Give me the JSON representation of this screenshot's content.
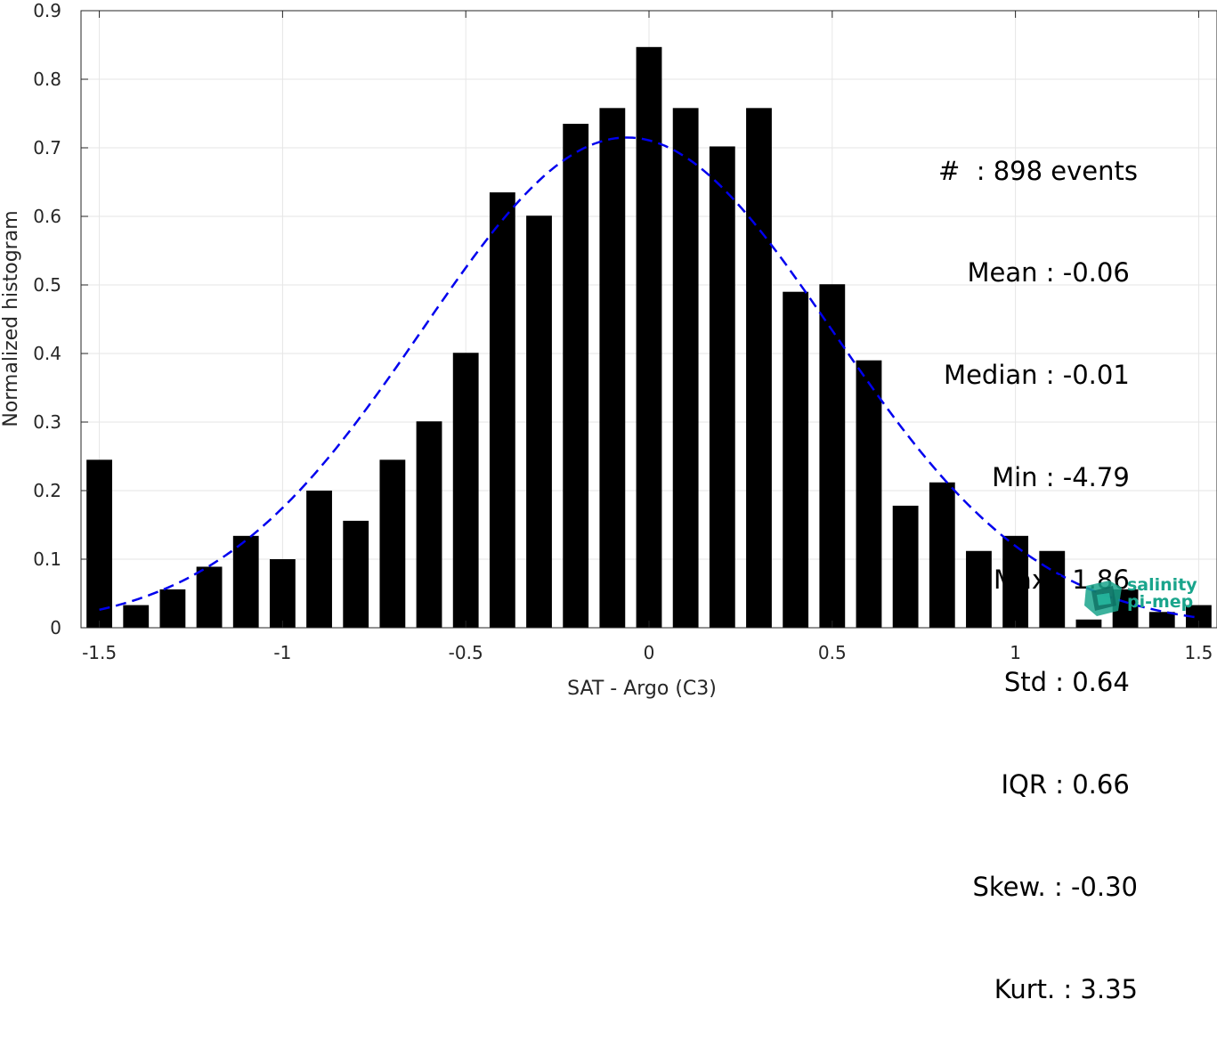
{
  "chart_data": {
    "type": "bar",
    "xlabel": "SAT - Argo (C3)",
    "ylabel": "Normalized histogram",
    "xlim": [
      -1.55,
      1.55
    ],
    "ylim": [
      0,
      0.9
    ],
    "xticks": [
      -1.5,
      -1,
      -0.5,
      0,
      0.5,
      1,
      1.5
    ],
    "xtick_labels": [
      "-1.5",
      "-1",
      "-0.5",
      "0",
      "0.5",
      "1",
      "1.5"
    ],
    "yticks": [
      0,
      0.1,
      0.2,
      0.3,
      0.4,
      0.5,
      0.6,
      0.7,
      0.8,
      0.9
    ],
    "ytick_labels": [
      "0",
      "0.1",
      "0.2",
      "0.3",
      "0.4",
      "0.5",
      "0.6",
      "0.7",
      "0.8",
      "0.9"
    ],
    "grid": true,
    "bar_color": "#000000",
    "x": [
      -1.5,
      -1.4,
      -1.3,
      -1.2,
      -1.1,
      -1.0,
      -0.9,
      -0.8,
      -0.7,
      -0.6,
      -0.5,
      -0.4,
      -0.3,
      -0.2,
      -0.1,
      0.0,
      0.1,
      0.2,
      0.3,
      0.4,
      0.5,
      0.6,
      0.7,
      0.8,
      0.9,
      1.0,
      1.1,
      1.2,
      1.3,
      1.4,
      1.5
    ],
    "values": [
      0.245,
      0.033,
      0.056,
      0.089,
      0.134,
      0.1,
      0.2,
      0.156,
      0.245,
      0.301,
      0.401,
      0.635,
      0.601,
      0.735,
      0.758,
      0.847,
      0.758,
      0.702,
      0.758,
      0.49,
      0.501,
      0.39,
      0.178,
      0.212,
      0.112,
      0.134,
      0.112,
      0.012,
      0.056,
      0.023,
      0.033
    ],
    "fit": {
      "type": "normal",
      "mean": -0.06,
      "std": 0.56,
      "peak": 0.715,
      "color": "#0000ee",
      "style": "dashed"
    }
  },
  "stats": [
    "#  : 898 events",
    "Mean : -0.06 ",
    "Median : -0.01 ",
    "Min : -4.79 ",
    "Max : 1.86 ",
    "Std : 0.64 ",
    "IQR : 0.66 ",
    "Skew. : -0.30",
    "Kurt. : 3.35"
  ],
  "logo": {
    "line1": "salinity",
    "line2": "pi-mep",
    "color": "#1aa58c"
  }
}
